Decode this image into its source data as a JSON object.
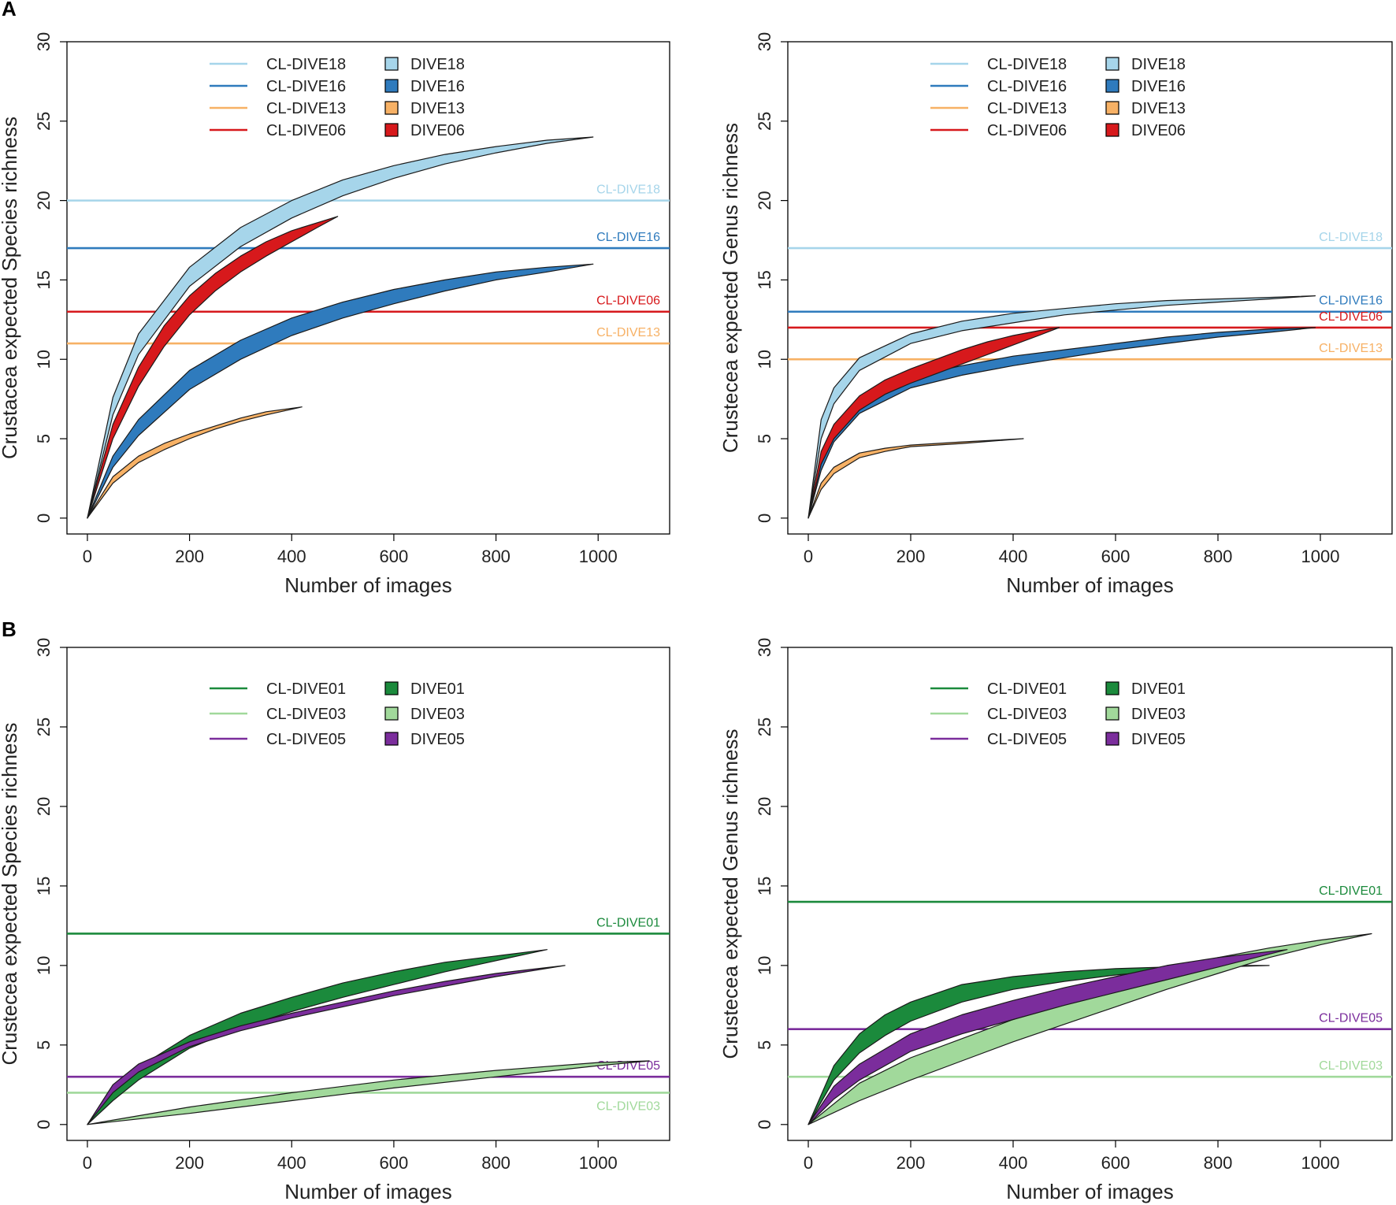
{
  "panels": [
    {
      "letter": "A"
    },
    {
      "letter": "B"
    }
  ],
  "chart_data": [
    {
      "type": "area",
      "panel": "A",
      "xlabel": "Number of images",
      "ylabel": "Crustacea expected Species richness",
      "xlim": [
        -40,
        1140
      ],
      "ylim": [
        -1,
        30
      ],
      "xticks": [
        0,
        200,
        400,
        600,
        800,
        1000
      ],
      "yticks": [
        0,
        5,
        10,
        15,
        20,
        25,
        30
      ],
      "legend": {
        "position": "top",
        "lines": [
          "CL-DIVE18",
          "CL-DIVE16",
          "CL-DIVE13",
          "CL-DIVE06"
        ],
        "bands": [
          "DIVE18",
          "DIVE16",
          "DIVE13",
          "DIVE06"
        ]
      },
      "reference_lines": [
        {
          "name": "CL-DIVE18",
          "value": 20,
          "color": "#a6d5ea"
        },
        {
          "name": "CL-DIVE16",
          "value": 17,
          "color": "#2f7bbd"
        },
        {
          "name": "CL-DIVE06",
          "value": 13,
          "color": "#d7191c"
        },
        {
          "name": "CL-DIVE13",
          "value": 11,
          "color": "#f7b165"
        }
      ],
      "series": [
        {
          "name": "DIVE18",
          "color": "#a6d5ea",
          "x": [
            0,
            50,
            100,
            200,
            300,
            400,
            500,
            600,
            700,
            800,
            900,
            990
          ],
          "lower": [
            0,
            6.5,
            10.3,
            14.6,
            17.1,
            18.9,
            20.3,
            21.4,
            22.3,
            23.0,
            23.6,
            24.0
          ],
          "upper": [
            0,
            7.6,
            11.6,
            15.8,
            18.3,
            20.0,
            21.3,
            22.2,
            22.9,
            23.4,
            23.8,
            24.0
          ]
        },
        {
          "name": "DIVE16",
          "color": "#2f7bbd",
          "x": [
            0,
            50,
            100,
            200,
            300,
            400,
            500,
            600,
            700,
            800,
            900,
            990
          ],
          "lower": [
            0,
            3.2,
            5.2,
            8.1,
            10.0,
            11.5,
            12.6,
            13.5,
            14.3,
            15.0,
            15.5,
            16.0
          ],
          "upper": [
            0,
            3.9,
            6.2,
            9.3,
            11.2,
            12.6,
            13.6,
            14.4,
            15.0,
            15.5,
            15.8,
            16.0
          ]
        },
        {
          "name": "DIVE13",
          "color": "#f7b165",
          "x": [
            0,
            50,
            100,
            150,
            200,
            250,
            300,
            350,
            420
          ],
          "lower": [
            0,
            2.2,
            3.5,
            4.3,
            5.0,
            5.6,
            6.1,
            6.5,
            7.0
          ],
          "upper": [
            0,
            2.6,
            3.9,
            4.7,
            5.3,
            5.8,
            6.3,
            6.7,
            7.0
          ]
        },
        {
          "name": "DIVE06",
          "color": "#d7191c",
          "x": [
            0,
            50,
            100,
            150,
            200,
            250,
            300,
            350,
            400,
            450,
            490
          ],
          "lower": [
            0,
            5.0,
            8.3,
            10.8,
            12.8,
            14.3,
            15.5,
            16.5,
            17.4,
            18.3,
            19.0
          ],
          "upper": [
            0,
            5.9,
            9.5,
            12.1,
            14.0,
            15.4,
            16.5,
            17.4,
            18.1,
            18.6,
            19.0
          ]
        }
      ]
    },
    {
      "type": "area",
      "panel": "A",
      "xlabel": "Number of images",
      "ylabel": "Crustecea expected Genus richness",
      "xlim": [
        -40,
        1140
      ],
      "ylim": [
        -1,
        30
      ],
      "xticks": [
        0,
        200,
        400,
        600,
        800,
        1000
      ],
      "yticks": [
        0,
        5,
        10,
        15,
        20,
        25,
        30
      ],
      "legend": {
        "position": "top",
        "lines": [
          "CL-DIVE18",
          "CL-DIVE16",
          "CL-DIVE13",
          "CL-DIVE06"
        ],
        "bands": [
          "DIVE18",
          "DIVE16",
          "DIVE13",
          "DIVE06"
        ]
      },
      "reference_lines": [
        {
          "name": "CL-DIVE18",
          "value": 17,
          "color": "#a6d5ea"
        },
        {
          "name": "CL-DIVE16",
          "value": 13,
          "color": "#2f7bbd"
        },
        {
          "name": "CL-DIVE06",
          "value": 12,
          "color": "#d7191c"
        },
        {
          "name": "CL-DIVE13",
          "value": 10,
          "color": "#f7b165"
        }
      ],
      "series": [
        {
          "name": "DIVE18",
          "color": "#a6d5ea",
          "x": [
            0,
            25,
            50,
            100,
            200,
            300,
            400,
            500,
            600,
            700,
            800,
            900,
            990
          ],
          "lower": [
            0,
            5.0,
            7.2,
            9.3,
            11.0,
            11.8,
            12.3,
            12.8,
            13.1,
            13.4,
            13.6,
            13.8,
            14.0
          ],
          "upper": [
            0,
            6.2,
            8.2,
            10.1,
            11.6,
            12.4,
            12.9,
            13.2,
            13.5,
            13.7,
            13.8,
            13.9,
            14.0
          ]
        },
        {
          "name": "DIVE16",
          "color": "#2f7bbd",
          "x": [
            0,
            25,
            50,
            100,
            200,
            300,
            400,
            500,
            600,
            700,
            800,
            900,
            990
          ],
          "lower": [
            0,
            3.0,
            4.8,
            6.6,
            8.2,
            9.0,
            9.6,
            10.1,
            10.6,
            11.0,
            11.4,
            11.7,
            12.0
          ],
          "upper": [
            0,
            4.0,
            5.8,
            7.5,
            8.9,
            9.6,
            10.2,
            10.6,
            11.0,
            11.4,
            11.7,
            11.9,
            12.0
          ]
        },
        {
          "name": "DIVE13",
          "color": "#f7b165",
          "x": [
            0,
            25,
            50,
            100,
            150,
            200,
            300,
            420
          ],
          "lower": [
            0,
            1.8,
            2.8,
            3.8,
            4.2,
            4.5,
            4.7,
            5.0
          ],
          "upper": [
            0,
            2.2,
            3.2,
            4.1,
            4.4,
            4.6,
            4.8,
            5.0
          ]
        },
        {
          "name": "DIVE06",
          "color": "#d7191c",
          "x": [
            0,
            25,
            50,
            100,
            150,
            200,
            250,
            300,
            350,
            400,
            450,
            490
          ],
          "lower": [
            0,
            3.4,
            5.0,
            6.8,
            7.8,
            8.5,
            9.1,
            9.7,
            10.3,
            10.9,
            11.5,
            12.0
          ],
          "upper": [
            0,
            4.2,
            5.9,
            7.7,
            8.7,
            9.4,
            10.0,
            10.6,
            11.1,
            11.5,
            11.8,
            12.0
          ]
        }
      ]
    },
    {
      "type": "area",
      "panel": "B",
      "xlabel": "Number of images",
      "ylabel": "Crustecea expected Species richness",
      "xlim": [
        -40,
        1140
      ],
      "ylim": [
        -1,
        30
      ],
      "xticks": [
        0,
        200,
        400,
        600,
        800,
        1000
      ],
      "yticks": [
        0,
        5,
        10,
        15,
        20,
        25,
        30
      ],
      "legend": {
        "position": "top",
        "lines": [
          "CL-DIVE01",
          "CL-DIVE03",
          "CL-DIVE05"
        ],
        "bands": [
          "DIVE01",
          "DIVE03",
          "DIVE05"
        ]
      },
      "reference_lines": [
        {
          "name": "CL-DIVE01",
          "value": 12,
          "color": "#1b8a3c",
          "label_pos": "above"
        },
        {
          "name": "CL-DIVE05",
          "value": 3,
          "color": "#7b2d9c",
          "label_pos": "above"
        },
        {
          "name": "CL-DIVE03",
          "value": 2,
          "color": "#a1d99b",
          "label_pos": "below"
        }
      ],
      "series": [
        {
          "name": "DIVE01",
          "color": "#1b8a3c",
          "x": [
            0,
            50,
            100,
            200,
            300,
            400,
            500,
            600,
            700,
            800,
            900
          ],
          "lower": [
            0,
            1.5,
            2.8,
            4.8,
            6.1,
            7.1,
            8.0,
            8.8,
            9.6,
            10.3,
            11.0
          ],
          "upper": [
            0,
            2.1,
            3.6,
            5.6,
            7.0,
            8.0,
            8.9,
            9.6,
            10.2,
            10.6,
            11.0
          ]
        },
        {
          "name": "DIVE03",
          "color": "#a1d99b",
          "x": [
            0,
            200,
            400,
            600,
            800,
            1000,
            1100
          ],
          "lower": [
            0,
            0.7,
            1.5,
            2.3,
            3.0,
            3.7,
            4.0
          ],
          "upper": [
            0,
            1.1,
            2.0,
            2.8,
            3.4,
            3.9,
            4.0
          ]
        },
        {
          "name": "DIVE05",
          "color": "#7b2d9c",
          "x": [
            0,
            50,
            100,
            200,
            300,
            400,
            500,
            600,
            700,
            800,
            935
          ],
          "lower": [
            0,
            2.0,
            3.3,
            4.9,
            5.9,
            6.7,
            7.4,
            8.1,
            8.7,
            9.3,
            10.0
          ],
          "upper": [
            0,
            2.5,
            3.8,
            5.2,
            6.2,
            7.0,
            7.7,
            8.4,
            9.0,
            9.5,
            10.0
          ]
        }
      ]
    },
    {
      "type": "area",
      "panel": "B",
      "xlabel": "Number of images",
      "ylabel": "Crustecea expected Genus richness",
      "xlim": [
        -40,
        1140
      ],
      "ylim": [
        -1,
        30
      ],
      "xticks": [
        0,
        200,
        400,
        600,
        800,
        1000
      ],
      "yticks": [
        0,
        5,
        10,
        15,
        20,
        25,
        30
      ],
      "legend": {
        "position": "top",
        "lines": [
          "CL-DIVE01",
          "CL-DIVE03",
          "CL-DIVE05"
        ],
        "bands": [
          "DIVE01",
          "DIVE03",
          "DIVE05"
        ]
      },
      "reference_lines": [
        {
          "name": "CL-DIVE01",
          "value": 14,
          "color": "#1b8a3c",
          "label_pos": "above"
        },
        {
          "name": "CL-DIVE05",
          "value": 6,
          "color": "#7b2d9c",
          "label_pos": "above"
        },
        {
          "name": "CL-DIVE03",
          "value": 3,
          "color": "#a1d99b",
          "label_pos": "above"
        }
      ],
      "series": [
        {
          "name": "DIVE01",
          "color": "#1b8a3c",
          "x": [
            0,
            50,
            100,
            150,
            200,
            300,
            400,
            500,
            600,
            700,
            800,
            900
          ],
          "lower": [
            0,
            2.8,
            4.5,
            5.6,
            6.5,
            7.7,
            8.5,
            9.0,
            9.4,
            9.7,
            9.9,
            10.0
          ],
          "upper": [
            0,
            3.7,
            5.7,
            6.9,
            7.7,
            8.8,
            9.3,
            9.6,
            9.8,
            9.9,
            10.0,
            10.0
          ]
        },
        {
          "name": "DIVE03",
          "color": "#a1d99b",
          "x": [
            0,
            100,
            200,
            300,
            400,
            500,
            600,
            700,
            800,
            900,
            1000,
            1100
          ],
          "lower": [
            0,
            1.5,
            2.8,
            4.0,
            5.2,
            6.3,
            7.4,
            8.5,
            9.5,
            10.5,
            11.3,
            12.0
          ],
          "upper": [
            0,
            2.6,
            4.2,
            5.4,
            6.6,
            7.7,
            8.7,
            9.6,
            10.5,
            11.1,
            11.6,
            12.0
          ]
        },
        {
          "name": "DIVE05",
          "color": "#7b2d9c",
          "x": [
            0,
            50,
            100,
            200,
            300,
            400,
            500,
            600,
            700,
            800,
            935
          ],
          "lower": [
            0,
            1.6,
            2.8,
            4.6,
            5.7,
            6.6,
            7.5,
            8.3,
            9.1,
            9.9,
            11.0
          ],
          "upper": [
            0,
            2.4,
            3.8,
            5.7,
            6.9,
            7.8,
            8.6,
            9.3,
            10.0,
            10.5,
            11.0
          ]
        }
      ]
    }
  ]
}
